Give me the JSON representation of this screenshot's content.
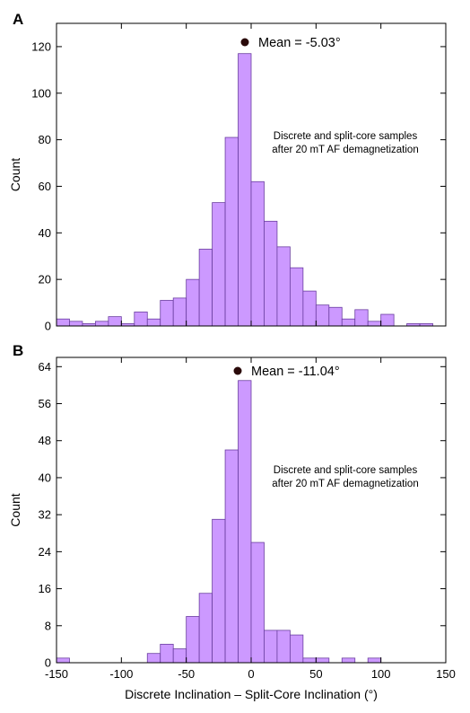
{
  "colors": {
    "bar_fill": "#cc99ff",
    "bar_stroke": "#6b3fa0",
    "axis": "#000000",
    "mean_marker": "#2a0a0a"
  },
  "chart_data": [
    {
      "type": "bar",
      "panel_label": "A",
      "title": "",
      "xlabel": "",
      "ylabel": "Count",
      "xlim": [
        -150,
        150
      ],
      "ylim": [
        0,
        130
      ],
      "yticks": [
        0,
        20,
        40,
        60,
        80,
        100,
        120
      ],
      "grid": false,
      "bin_width": 10,
      "bin_edges_start": -150,
      "values": [
        3,
        2,
        1,
        2,
        4,
        1,
        6,
        3,
        11,
        12,
        20,
        33,
        53,
        81,
        117,
        62,
        45,
        34,
        25,
        15,
        9,
        8,
        3,
        7,
        2,
        5,
        0,
        1,
        1
      ],
      "mean": -5.03,
      "mean_label": "Mean = -5.03°",
      "annotation": [
        "Discrete and split-core samples",
        "after 20 mT AF demagnetization"
      ]
    },
    {
      "type": "bar",
      "panel_label": "B",
      "title": "",
      "xlabel": "Discrete Inclination – Split-Core Inclination (°)",
      "ylabel": "Count",
      "xlim": [
        -150,
        150
      ],
      "ylim": [
        0,
        66
      ],
      "yticks": [
        0,
        8,
        16,
        24,
        32,
        40,
        48,
        56,
        64
      ],
      "xticks": [
        -150,
        -100,
        -50,
        0,
        50,
        100,
        150
      ],
      "grid": false,
      "bin_width": 10,
      "bin_edges_start": -150,
      "values": [
        1,
        0,
        0,
        0,
        0,
        0,
        0,
        2,
        4,
        3,
        10,
        15,
        31,
        46,
        61,
        26,
        7,
        7,
        6,
        1,
        1,
        0,
        1,
        0,
        1,
        0,
        0,
        0,
        0,
        0
      ],
      "mean": -11.04,
      "mean_label": "Mean = -11.04°",
      "annotation": [
        "Discrete and split-core samples",
        "after 20 mT AF demagnetization"
      ]
    }
  ]
}
